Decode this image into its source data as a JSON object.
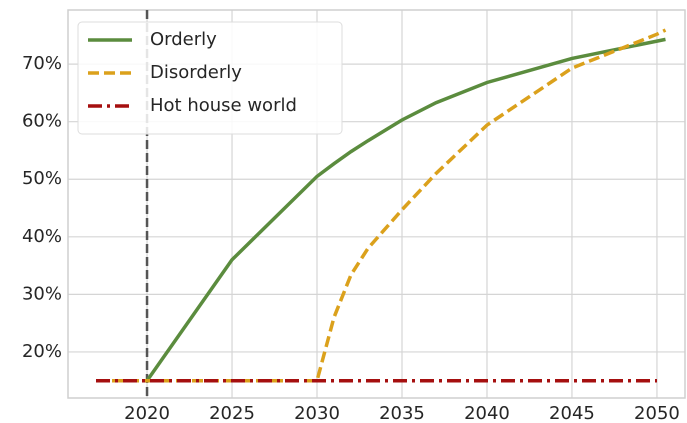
{
  "chart_data": {
    "type": "line",
    "x": [
      2017,
      2020,
      2025,
      2030,
      2031,
      2032,
      2033,
      2035,
      2037,
      2040,
      2045,
      2050,
      2050.5
    ],
    "series": [
      {
        "name": "Orderly",
        "color": "#5b8c3e",
        "dash": "solid",
        "values": [
          null,
          15,
          36,
          50.5,
          52.7,
          54.8,
          56.7,
          60.3,
          63.3,
          66.8,
          71,
          74,
          74.3
        ]
      },
      {
        "name": "Disorderly",
        "color": "#dba11c",
        "dash": "dashed",
        "values": [
          15,
          15,
          15,
          15,
          26,
          33.4,
          38,
          44.7,
          51,
          59.4,
          69.3,
          75.2,
          75.9
        ]
      },
      {
        "name": "Hot house world",
        "color": "#a50f0f",
        "dash": "dashdot",
        "values": [
          15,
          15,
          15,
          15,
          15,
          15,
          15,
          15,
          15,
          15,
          15,
          15,
          null
        ]
      }
    ],
    "vline": 2020,
    "xlim": [
      2015.35,
      2051.65
    ],
    "ylim": [
      12,
      79.4
    ],
    "xticks": [
      2020,
      2025,
      2030,
      2035,
      2040,
      2045,
      2050
    ],
    "yticks": [
      {
        "value": 20,
        "label": "20%"
      },
      {
        "value": 30,
        "label": "30%"
      },
      {
        "value": 40,
        "label": "40%"
      },
      {
        "value": 50,
        "label": "50%"
      },
      {
        "value": 60,
        "label": "60%"
      },
      {
        "value": 70,
        "label": "70%"
      }
    ],
    "grid": true,
    "legend": "upper left"
  }
}
